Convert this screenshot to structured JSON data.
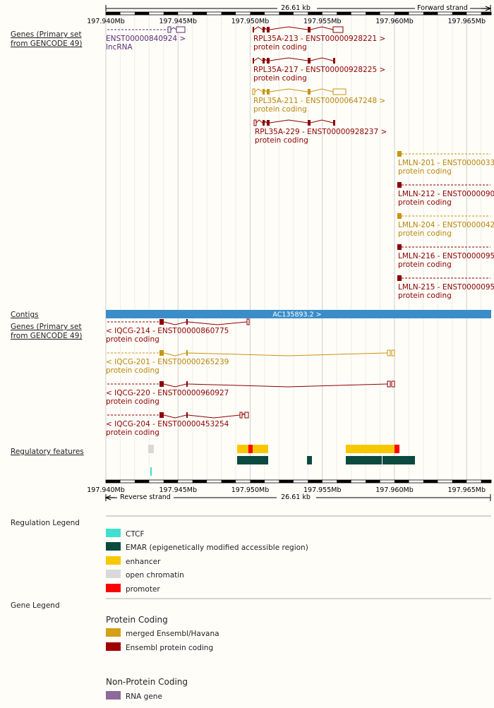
{
  "colors": {
    "ensembl": "#8b0000",
    "merged": "#c8940f",
    "rna": "#5a2d7a",
    "contig": "#3a8dc8",
    "ctcf": "#40e0d0",
    "emar": "#0a4a3f",
    "enhancer": "#f7c800",
    "open_chromatin": "#d9d9d9",
    "promoter": "#ff0000",
    "legend_merged": "#d4a017",
    "legend_ensembl": "#a00000",
    "legend_rna": "#8d6a9a"
  },
  "scale": {
    "top_span": "26.61 kb",
    "top_strand": "Forward strand",
    "bottom_span": "26.61 kb",
    "bottom_strand": "Reverse strand",
    "ticks": [
      "197.940Mb",
      "197.945Mb",
      "197.950Mb",
      "197.955Mb",
      "197.960Mb",
      "197.965Mb"
    ],
    "start_mb": 197.94,
    "end_mb": 197.9666
  },
  "tracks": {
    "genes_forward_label": "Genes (Primary set from GENCODE 49)",
    "contigs_label": "Contigs",
    "genes_reverse_label": "Genes (Primary set from GENCODE 49)",
    "regulatory_label": "Regulatory features"
  },
  "contig": {
    "name": "AC135893.2 >"
  },
  "genes_forward": [
    {
      "name": "ENST00000840924 >",
      "biotype": "lncRNA"
    },
    {
      "name": "RPL35A-213 - ENST00000928221 >",
      "biotype": "protein coding"
    },
    {
      "name": "RPL35A-217 - ENST00000928225 >",
      "biotype": "protein coding"
    },
    {
      "name": "RPL35A-211 - ENST00000647248 >",
      "biotype": "protein coding"
    },
    {
      "name": "RPL35A-229 - ENST00000928237 >",
      "biotype": "protein coding"
    },
    {
      "name": "LMLN-201 - ENST0000033",
      "biotype": "protein coding"
    },
    {
      "name": "LMLN-212 - ENST0000090",
      "biotype": "protein coding"
    },
    {
      "name": "LMLN-204 - ENST0000042",
      "biotype": "protein coding"
    },
    {
      "name": "LMLN-216 - ENST0000095",
      "biotype": "protein coding"
    },
    {
      "name": "LMLN-215 - ENST0000095",
      "biotype": "protein coding"
    }
  ],
  "genes_reverse": [
    {
      "name": "< IQCG-214 - ENST00000860775",
      "biotype": "protein coding"
    },
    {
      "name": "< IQCG-201 - ENST00000265239",
      "biotype": "protein coding"
    },
    {
      "name": "< IQCG-220 - ENST00000960927",
      "biotype": "protein coding"
    },
    {
      "name": "< IQCG-204 - ENST00000453254",
      "biotype": "protein coding"
    }
  ],
  "regulation_legend": {
    "title": "Regulation Legend",
    "items": [
      "CTCF",
      "EMAR (epigenetically modified accessible region)",
      "enhancer",
      "open chromatin",
      "promoter"
    ]
  },
  "gene_legend": {
    "title": "Gene Legend",
    "protein_heading": "Protein Coding",
    "protein_items": [
      "merged Ensembl/Havana",
      "Ensembl protein coding"
    ],
    "nonprotein_heading": "Non-Protein Coding",
    "nonprotein_items": [
      "RNA gene"
    ]
  }
}
